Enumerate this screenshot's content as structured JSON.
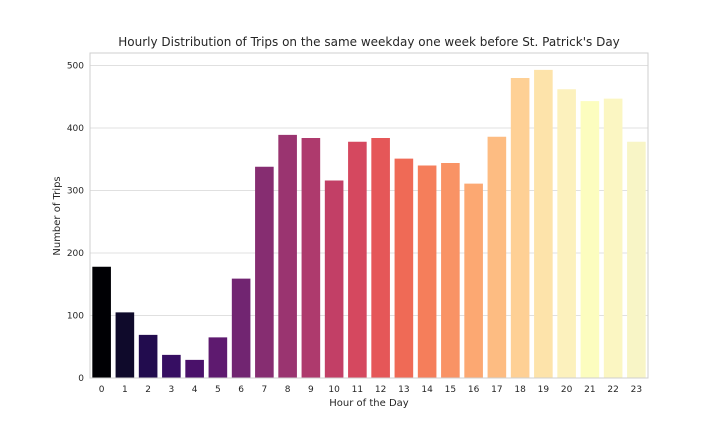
{
  "chart_data": {
    "type": "bar",
    "title": "Hourly Distribution of Trips on the same weekday one week before St. Patrick's Day",
    "xlabel": "Hour of the Day",
    "ylabel": "Number of Trips",
    "categories": [
      "0",
      "1",
      "2",
      "3",
      "4",
      "5",
      "6",
      "7",
      "8",
      "9",
      "10",
      "11",
      "12",
      "13",
      "14",
      "15",
      "16",
      "17",
      "18",
      "19",
      "20",
      "21",
      "22",
      "23"
    ],
    "values": [
      178,
      105,
      69,
      37,
      29,
      65,
      159,
      338,
      389,
      384,
      316,
      378,
      384,
      351,
      340,
      344,
      311,
      386,
      480,
      493,
      462,
      443,
      447,
      378
    ],
    "ylim": [
      0,
      520
    ],
    "yticks": [
      0,
      100,
      200,
      300,
      400,
      500
    ],
    "grid": "y",
    "legend": "none",
    "palette": "magma",
    "colors": [
      "#000004",
      "#0f0a2b",
      "#220c4e",
      "#360e62",
      "#4a116a",
      "#5e1a6f",
      "#712571",
      "#862d71",
      "#9a3470",
      "#ae3a6d",
      "#c23f66",
      "#d5485f",
      "#e55758",
      "#ef6a56",
      "#f57e5b",
      "#f99365",
      "#fca872",
      "#fdbc82",
      "#fed095",
      "#fde3aa",
      "#fcf1bd",
      "#fcfdbf",
      "#fbf6c2",
      "#f8f5c6"
    ]
  }
}
